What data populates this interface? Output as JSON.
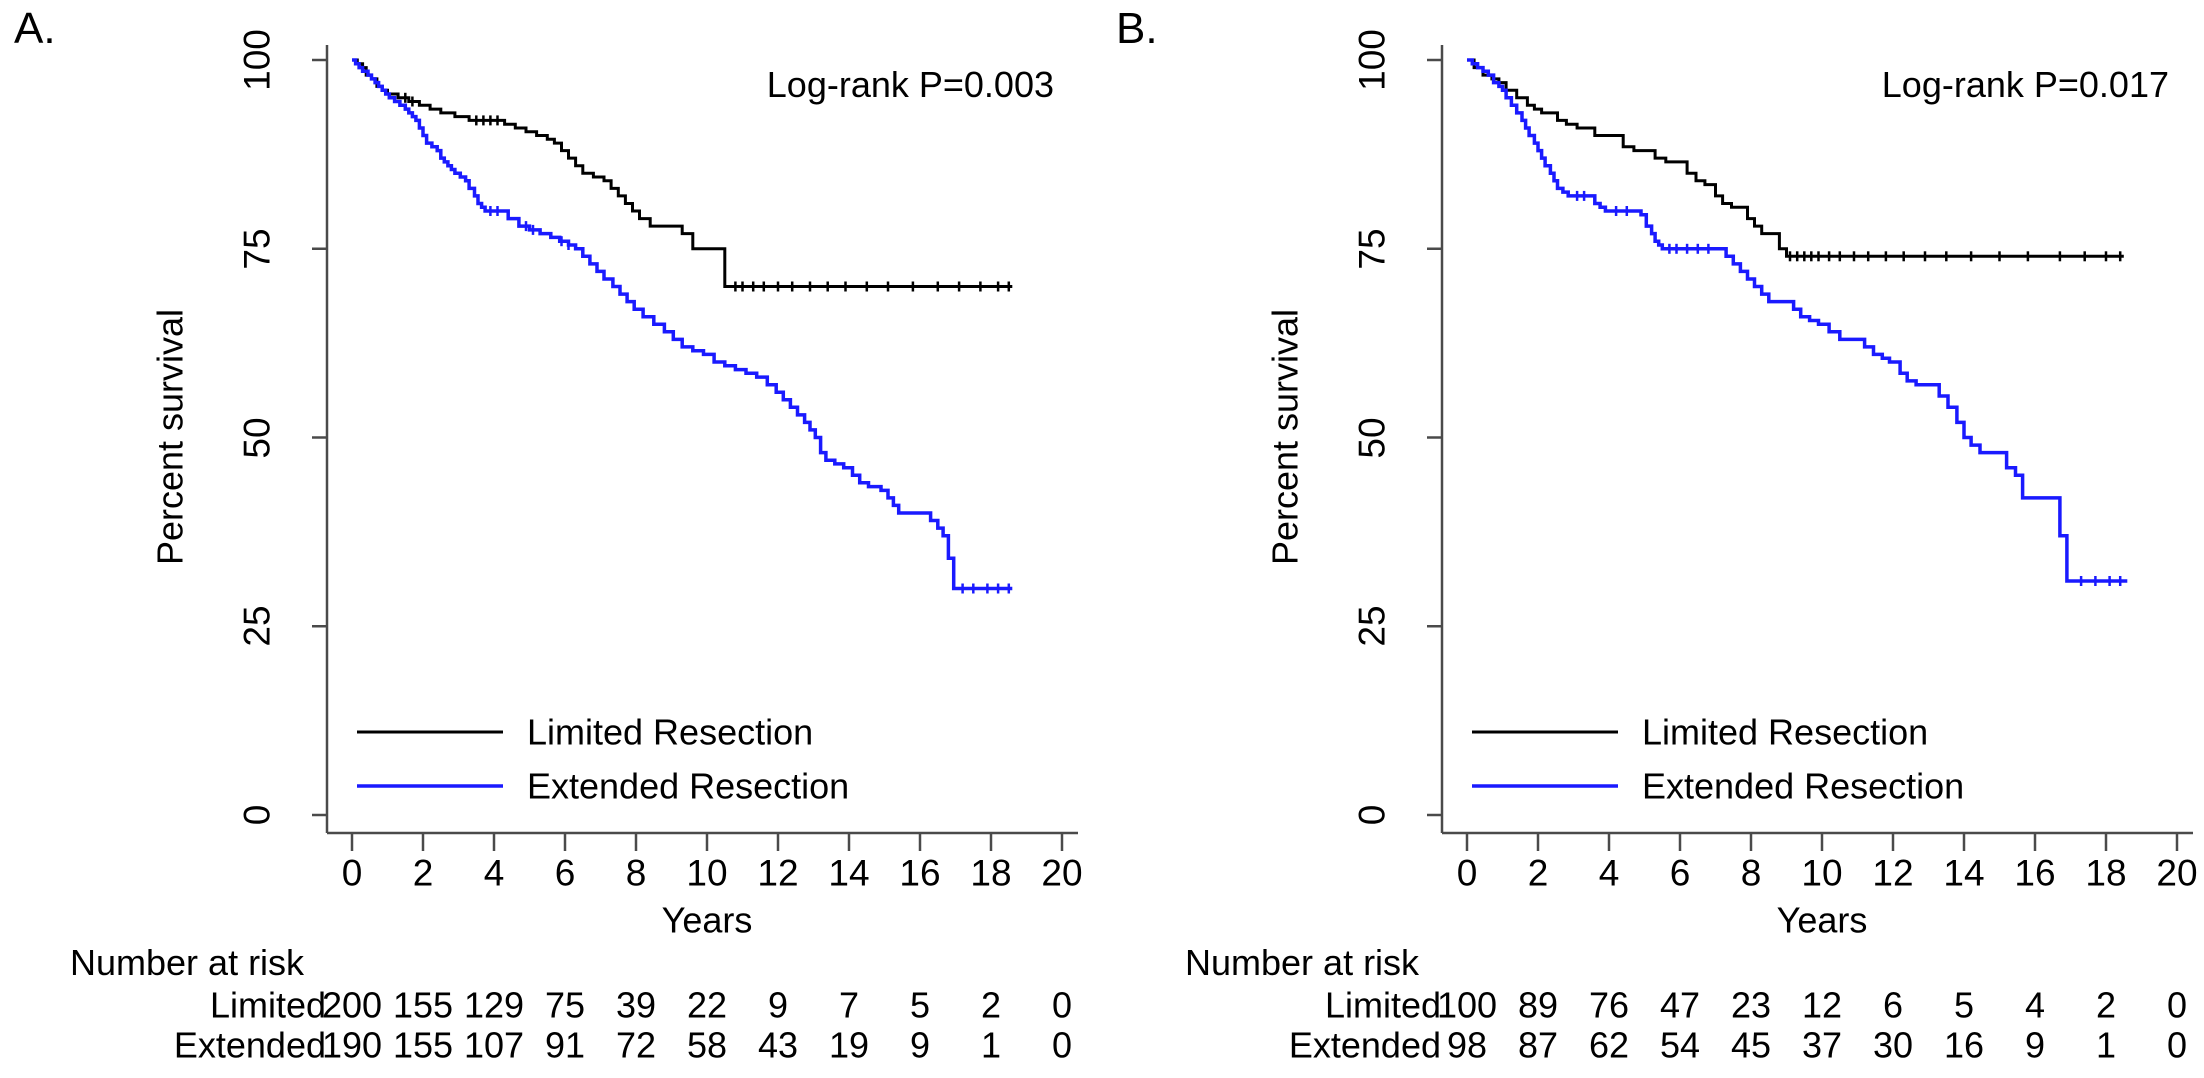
{
  "figure_type": "kaplan-meier-survival-figure",
  "colors": {
    "limited": "#000000",
    "extended": "#1a1aff",
    "axis": "#4a4a4a"
  },
  "chart_data": [
    {
      "type": "line",
      "subtype": "kaplan-meier-step",
      "panel_label": "A.",
      "annotation": "Log-rank P=0.003",
      "xlabel": "Years",
      "ylabel": "Percent survival",
      "xlim": [
        0,
        20
      ],
      "ylim": [
        0,
        100
      ],
      "x_ticks": [
        0,
        2,
        4,
        6,
        8,
        10,
        12,
        14,
        16,
        18,
        20
      ],
      "y_ticks": [
        0,
        25,
        50,
        75,
        100
      ],
      "grid": false,
      "legend_position": "lower-left-inside",
      "axis_color": "#4a4a4a",
      "series": [
        {
          "name": "Limited Resection",
          "color": "#000000",
          "points": [
            [
              0,
              100
            ],
            [
              0.15,
              99.5
            ],
            [
              0.3,
              99
            ],
            [
              0.4,
              98
            ],
            [
              0.55,
              97.5
            ],
            [
              0.7,
              96.5
            ],
            [
              0.85,
              96
            ],
            [
              1.0,
              95.5
            ],
            [
              1.3,
              95
            ],
            [
              1.6,
              94.5
            ],
            [
              1.9,
              94
            ],
            [
              2.2,
              93.5
            ],
            [
              2.5,
              93
            ],
            [
              2.9,
              92.5
            ],
            [
              3.3,
              92
            ],
            [
              4.3,
              91.5
            ],
            [
              4.6,
              91
            ],
            [
              4.9,
              90.5
            ],
            [
              5.2,
              90
            ],
            [
              5.5,
              89.5
            ],
            [
              5.7,
              89
            ],
            [
              5.9,
              88
            ],
            [
              6.1,
              87
            ],
            [
              6.3,
              86
            ],
            [
              6.5,
              85
            ],
            [
              6.8,
              84.5
            ],
            [
              7.1,
              84
            ],
            [
              7.3,
              83
            ],
            [
              7.5,
              82
            ],
            [
              7.7,
              81
            ],
            [
              7.9,
              80
            ],
            [
              8.1,
              79
            ],
            [
              8.4,
              78
            ],
            [
              9.3,
              77
            ],
            [
              9.6,
              75
            ],
            [
              10.5,
              70
            ]
          ],
          "censor_times": [
            1.5,
            1.7,
            3.5,
            3.7,
            3.9,
            4.1,
            10.8,
            11.0,
            11.3,
            11.6,
            12.0,
            12.4,
            12.9,
            13.4,
            13.9,
            14.5,
            15.1,
            15.8,
            16.5,
            17.1,
            17.7,
            18.2,
            18.5
          ],
          "end_time": 18.6
        },
        {
          "name": "Extended Resection",
          "color": "#1a1aff",
          "points": [
            [
              0,
              100
            ],
            [
              0.1,
              99.5
            ],
            [
              0.2,
              99
            ],
            [
              0.3,
              98.5
            ],
            [
              0.45,
              98
            ],
            [
              0.55,
              97.5
            ],
            [
              0.65,
              97
            ],
            [
              0.75,
              96.5
            ],
            [
              0.85,
              96
            ],
            [
              0.95,
              95.5
            ],
            [
              1.05,
              95
            ],
            [
              1.2,
              94.5
            ],
            [
              1.35,
              94
            ],
            [
              1.5,
              93.5
            ],
            [
              1.6,
              93
            ],
            [
              1.7,
              92.5
            ],
            [
              1.8,
              92
            ],
            [
              1.9,
              91
            ],
            [
              2.0,
              90
            ],
            [
              2.1,
              89
            ],
            [
              2.25,
              88.5
            ],
            [
              2.4,
              88
            ],
            [
              2.5,
              87
            ],
            [
              2.6,
              86.5
            ],
            [
              2.7,
              86
            ],
            [
              2.8,
              85.5
            ],
            [
              2.9,
              85
            ],
            [
              3.05,
              84.5
            ],
            [
              3.2,
              84
            ],
            [
              3.3,
              83
            ],
            [
              3.45,
              82
            ],
            [
              3.55,
              81
            ],
            [
              3.65,
              80.5
            ],
            [
              3.75,
              80
            ],
            [
              4.4,
              79
            ],
            [
              4.7,
              78
            ],
            [
              5.0,
              77.5
            ],
            [
              5.3,
              77
            ],
            [
              5.6,
              76.5
            ],
            [
              5.85,
              76
            ],
            [
              6.1,
              75.5
            ],
            [
              6.3,
              75
            ],
            [
              6.5,
              74
            ],
            [
              6.7,
              73
            ],
            [
              6.9,
              72
            ],
            [
              7.1,
              71
            ],
            [
              7.35,
              70
            ],
            [
              7.55,
              69
            ],
            [
              7.75,
              68
            ],
            [
              7.95,
              67
            ],
            [
              8.2,
              66
            ],
            [
              8.5,
              65
            ],
            [
              8.8,
              64
            ],
            [
              9.05,
              63
            ],
            [
              9.3,
              62
            ],
            [
              9.6,
              61.5
            ],
            [
              9.9,
              61
            ],
            [
              10.2,
              60
            ],
            [
              10.5,
              59.5
            ],
            [
              10.8,
              59
            ],
            [
              11.1,
              58.5
            ],
            [
              11.4,
              58
            ],
            [
              11.7,
              57
            ],
            [
              11.95,
              56
            ],
            [
              12.15,
              55
            ],
            [
              12.35,
              54
            ],
            [
              12.55,
              53
            ],
            [
              12.75,
              52
            ],
            [
              12.9,
              51
            ],
            [
              13.05,
              50
            ],
            [
              13.2,
              48
            ],
            [
              13.35,
              47
            ],
            [
              13.6,
              46.5
            ],
            [
              13.85,
              46
            ],
            [
              14.1,
              45
            ],
            [
              14.3,
              44
            ],
            [
              14.55,
              43.5
            ],
            [
              14.9,
              43
            ],
            [
              15.1,
              42
            ],
            [
              15.25,
              41
            ],
            [
              15.4,
              40
            ],
            [
              16.3,
              39
            ],
            [
              16.5,
              38
            ],
            [
              16.65,
              37
            ],
            [
              16.8,
              34
            ],
            [
              16.95,
              30
            ]
          ],
          "censor_times": [
            3.9,
            4.1,
            4.9,
            5.1,
            5.9,
            6.1,
            17.2,
            17.5,
            17.9,
            18.2,
            18.5
          ],
          "end_time": 18.6
        }
      ],
      "risk_table": {
        "title": "Number at risk",
        "times": [
          0,
          2,
          4,
          6,
          8,
          10,
          12,
          14,
          16,
          18,
          20
        ],
        "rows": [
          {
            "label": "Limited",
            "counts": [
              200,
              155,
              129,
              75,
              39,
              22,
              9,
              7,
              5,
              2,
              0
            ]
          },
          {
            "label": "Extended",
            "counts": [
              190,
              155,
              107,
              91,
              72,
              58,
              43,
              19,
              9,
              1,
              0
            ]
          }
        ]
      }
    },
    {
      "type": "line",
      "subtype": "kaplan-meier-step",
      "panel_label": "B.",
      "annotation": "Log-rank P=0.017",
      "xlabel": "Years",
      "ylabel": "Percent survival",
      "xlim": [
        0,
        20
      ],
      "ylim": [
        0,
        100
      ],
      "x_ticks": [
        0,
        2,
        4,
        6,
        8,
        10,
        12,
        14,
        16,
        18,
        20
      ],
      "y_ticks": [
        0,
        25,
        50,
        75,
        100
      ],
      "grid": false,
      "legend_position": "lower-left-inside",
      "axis_color": "#4a4a4a",
      "series": [
        {
          "name": "Limited Resection",
          "color": "#000000",
          "points": [
            [
              0,
              100
            ],
            [
              0.2,
              99
            ],
            [
              0.45,
              98
            ],
            [
              0.7,
              97.5
            ],
            [
              0.9,
              97
            ],
            [
              1.1,
              96
            ],
            [
              1.4,
              95
            ],
            [
              1.7,
              94
            ],
            [
              1.9,
              93.5
            ],
            [
              2.1,
              93
            ],
            [
              2.55,
              92
            ],
            [
              2.8,
              91.5
            ],
            [
              3.1,
              91
            ],
            [
              3.6,
              90
            ],
            [
              4.4,
              88.5
            ],
            [
              4.7,
              88
            ],
            [
              5.3,
              87
            ],
            [
              5.6,
              86.5
            ],
            [
              6.2,
              85
            ],
            [
              6.45,
              84
            ],
            [
              6.7,
              83.5
            ],
            [
              7.0,
              82
            ],
            [
              7.2,
              81
            ],
            [
              7.45,
              80.5
            ],
            [
              7.9,
              79
            ],
            [
              8.1,
              78
            ],
            [
              8.3,
              77
            ],
            [
              8.8,
              75
            ],
            [
              9.0,
              74
            ]
          ],
          "censor_times": [
            9.1,
            9.3,
            9.5,
            9.7,
            9.9,
            10.2,
            10.5,
            10.9,
            11.3,
            11.8,
            12.3,
            12.9,
            13.5,
            14.2,
            15.0,
            15.8,
            16.7,
            17.4,
            18.0,
            18.4
          ],
          "end_time": 18.5
        },
        {
          "name": "Extended Resection",
          "color": "#1a1aff",
          "points": [
            [
              0,
              100
            ],
            [
              0.15,
              99.5
            ],
            [
              0.3,
              99
            ],
            [
              0.45,
              98.5
            ],
            [
              0.6,
              98
            ],
            [
              0.75,
              97
            ],
            [
              0.9,
              96.5
            ],
            [
              1.0,
              96
            ],
            [
              1.1,
              95
            ],
            [
              1.25,
              94
            ],
            [
              1.4,
              93
            ],
            [
              1.55,
              92
            ],
            [
              1.65,
              91
            ],
            [
              1.75,
              90
            ],
            [
              1.9,
              89
            ],
            [
              2.0,
              88
            ],
            [
              2.1,
              87
            ],
            [
              2.2,
              86
            ],
            [
              2.35,
              85
            ],
            [
              2.45,
              84
            ],
            [
              2.55,
              83
            ],
            [
              2.7,
              82.5
            ],
            [
              2.85,
              82
            ],
            [
              3.6,
              81
            ],
            [
              3.75,
              80.5
            ],
            [
              3.9,
              80
            ],
            [
              4.9,
              79.5
            ],
            [
              5.05,
              78
            ],
            [
              5.2,
              77
            ],
            [
              5.3,
              76
            ],
            [
              5.4,
              75.5
            ],
            [
              5.5,
              75
            ],
            [
              7.3,
              74
            ],
            [
              7.5,
              73
            ],
            [
              7.7,
              72
            ],
            [
              7.9,
              71
            ],
            [
              8.1,
              70
            ],
            [
              8.3,
              69
            ],
            [
              8.5,
              68
            ],
            [
              9.2,
              67
            ],
            [
              9.4,
              66
            ],
            [
              9.65,
              65.5
            ],
            [
              9.9,
              65
            ],
            [
              10.2,
              64
            ],
            [
              10.5,
              63
            ],
            [
              11.2,
              62
            ],
            [
              11.45,
              61
            ],
            [
              11.7,
              60.5
            ],
            [
              11.9,
              60
            ],
            [
              12.2,
              58.5
            ],
            [
              12.4,
              57.5
            ],
            [
              12.65,
              57
            ],
            [
              13.3,
              55.5
            ],
            [
              13.55,
              54
            ],
            [
              13.8,
              52
            ],
            [
              14.0,
              50
            ],
            [
              14.2,
              49
            ],
            [
              14.45,
              48
            ],
            [
              15.2,
              46
            ],
            [
              15.45,
              45
            ],
            [
              15.65,
              42
            ],
            [
              16.7,
              37
            ],
            [
              16.9,
              31
            ]
          ],
          "censor_times": [
            3.1,
            3.3,
            4.2,
            4.5,
            5.7,
            5.9,
            6.2,
            6.5,
            6.8,
            17.3,
            17.7,
            18.1,
            18.4
          ],
          "end_time": 18.6
        }
      ],
      "risk_table": {
        "title": "Number at risk",
        "times": [
          0,
          2,
          4,
          6,
          8,
          10,
          12,
          14,
          16,
          18,
          20
        ],
        "rows": [
          {
            "label": "Limited",
            "counts": [
              100,
              89,
              76,
              47,
              23,
              12,
              6,
              5,
              4,
              2,
              0
            ]
          },
          {
            "label": "Extended",
            "counts": [
              98,
              87,
              62,
              54,
              45,
              37,
              30,
              16,
              9,
              1,
              0
            ]
          }
        ]
      }
    }
  ]
}
